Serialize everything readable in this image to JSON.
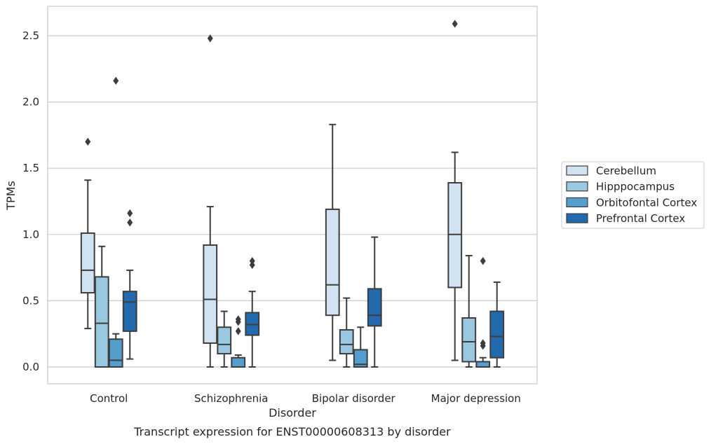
{
  "caption": "Transcript expression for ENST00000608313 by disorder",
  "chart_data": {
    "type": "box",
    "xlabel": "Disorder",
    "ylabel": "TPMs",
    "ylim": [
      -0.12,
      2.72
    ],
    "yticks": [
      "0.0",
      "0.5",
      "1.0",
      "1.5",
      "2.0",
      "2.5"
    ],
    "grid": true,
    "legend_position": "right",
    "categories": [
      "Control",
      "Schizophrenia",
      "Bipolar disorder",
      "Major depression"
    ],
    "series": [
      {
        "name": "Cerebellum",
        "color": "#d1e2f2",
        "boxes": [
          {
            "whislo": 0.29,
            "q1": 0.56,
            "med": 0.73,
            "q3": 1.01,
            "whishi": 1.41,
            "fliers": [
              1.7
            ]
          },
          {
            "whislo": 0.0,
            "q1": 0.18,
            "med": 0.51,
            "q3": 0.92,
            "whishi": 1.21,
            "fliers": [
              2.48
            ]
          },
          {
            "whislo": 0.05,
            "q1": 0.39,
            "med": 0.62,
            "q3": 1.19,
            "whishi": 1.83,
            "fliers": []
          },
          {
            "whislo": 0.05,
            "q1": 0.6,
            "med": 1.0,
            "q3": 1.39,
            "whishi": 1.62,
            "fliers": [
              2.59
            ]
          }
        ]
      },
      {
        "name": "Hipppocampus",
        "color": "#9ac8e0",
        "boxes": [
          {
            "whislo": 0.0,
            "q1": 0.0,
            "med": 0.33,
            "q3": 0.68,
            "whishi": 0.91,
            "fliers": []
          },
          {
            "whislo": 0.0,
            "q1": 0.1,
            "med": 0.17,
            "q3": 0.3,
            "whishi": 0.42,
            "fliers": []
          },
          {
            "whislo": 0.0,
            "q1": 0.1,
            "med": 0.17,
            "q3": 0.28,
            "whishi": 0.52,
            "fliers": []
          },
          {
            "whislo": 0.0,
            "q1": 0.04,
            "med": 0.19,
            "q3": 0.37,
            "whishi": 0.84,
            "fliers": []
          }
        ]
      },
      {
        "name": "Orbitofontal Cortex",
        "color": "#539ecd",
        "boxes": [
          {
            "whislo": 0.0,
            "q1": 0.0,
            "med": 0.05,
            "q3": 0.21,
            "whishi": 0.25,
            "fliers": [
              2.16
            ]
          },
          {
            "whislo": 0.0,
            "q1": 0.0,
            "med": 0.0,
            "q3": 0.07,
            "whishi": 0.09,
            "fliers": [
              0.27,
              0.34,
              0.36
            ]
          },
          {
            "whislo": 0.0,
            "q1": 0.0,
            "med": 0.02,
            "q3": 0.13,
            "whishi": 0.3,
            "fliers": []
          },
          {
            "whislo": 0.0,
            "q1": 0.0,
            "med": 0.0,
            "q3": 0.04,
            "whishi": 0.07,
            "fliers": [
              0.16,
              0.18,
              0.8
            ]
          }
        ]
      },
      {
        "name": "Prefrontal Cortex",
        "color": "#2369ae",
        "boxes": [
          {
            "whislo": 0.06,
            "q1": 0.27,
            "med": 0.49,
            "q3": 0.57,
            "whishi": 0.73,
            "fliers": [
              1.09,
              1.16
            ]
          },
          {
            "whislo": 0.0,
            "q1": 0.24,
            "med": 0.32,
            "q3": 0.41,
            "whishi": 0.57,
            "fliers": [
              0.77,
              0.8
            ]
          },
          {
            "whislo": 0.0,
            "q1": 0.31,
            "med": 0.39,
            "q3": 0.59,
            "whishi": 0.98,
            "fliers": []
          },
          {
            "whislo": 0.0,
            "q1": 0.07,
            "med": 0.23,
            "q3": 0.42,
            "whishi": 0.64,
            "fliers": []
          }
        ]
      }
    ]
  }
}
